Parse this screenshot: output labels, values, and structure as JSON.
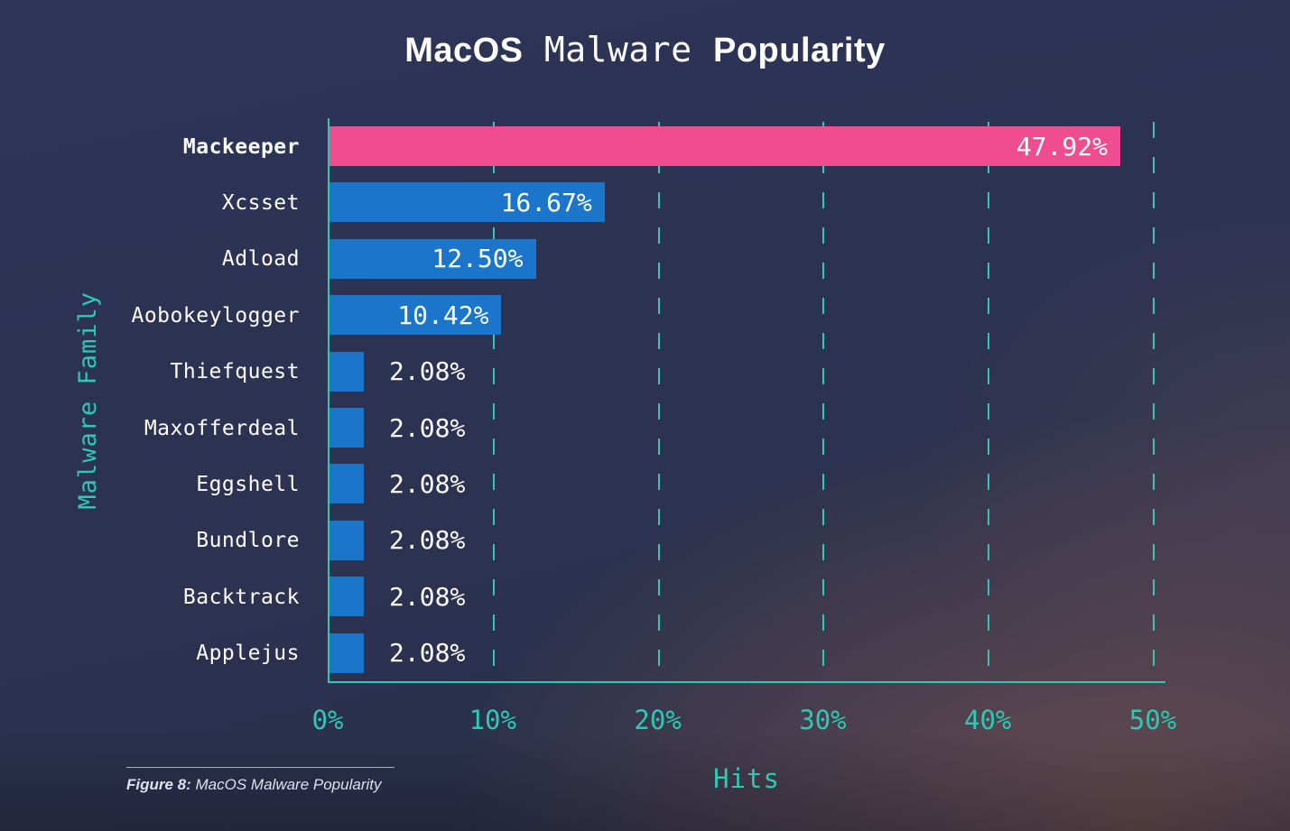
{
  "title": {
    "part1": "MacOS",
    "part2": "Malware",
    "part3": "Popularity"
  },
  "caption": {
    "label": "Figure 8:",
    "text": " MacOS Malware Popularity"
  },
  "chart_data": {
    "type": "bar",
    "orientation": "horizontal",
    "title": "MacOS Malware Popularity",
    "xlabel": "Hits",
    "ylabel": "Malware Family",
    "categories": [
      "Mackeeper",
      "Xcsset",
      "Adload",
      "Aobokeylogger",
      "Thiefquest",
      "Maxofferdeal",
      "Eggshell",
      "Bundlore",
      "Backtrack",
      "Applejus"
    ],
    "values": [
      47.92,
      16.67,
      12.5,
      10.42,
      2.08,
      2.08,
      2.08,
      2.08,
      2.08,
      2.08
    ],
    "value_labels": [
      "47.92%",
      "16.67%",
      "12.50%",
      "10.42%",
      "2.08%",
      "2.08%",
      "2.08%",
      "2.08%",
      "2.08%",
      "2.08%"
    ],
    "highlight_category": "Mackeeper",
    "xlim": [
      0,
      50
    ],
    "x_ticks": [
      0,
      10,
      20,
      30,
      40,
      50
    ],
    "x_tick_labels": [
      "0%",
      "10%",
      "20%",
      "30%",
      "40%",
      "50%"
    ],
    "grid": "dashed-vertical",
    "legend": "none",
    "colors": {
      "highlight_bar": "#ef4d90",
      "bar": "#1b76cb",
      "axis_teal": "#2cc9b4",
      "value_text": "#ffffff",
      "category_text": "#ffffff",
      "background": "#2c3251"
    }
  }
}
